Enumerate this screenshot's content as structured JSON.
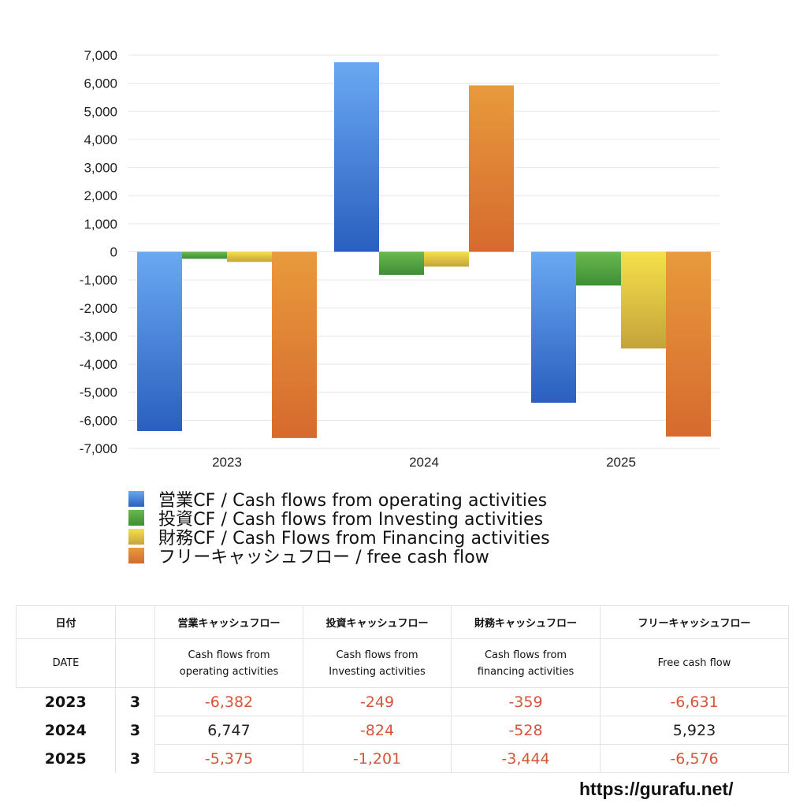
{
  "chart_data": {
    "type": "bar",
    "categories": [
      "2023",
      "2024",
      "2025"
    ],
    "series": [
      {
        "name": "営業CF / Cash flows from operating activities",
        "values": [
          -6382,
          6747,
          -5375
        ]
      },
      {
        "name": "投資CF / Cash flows from Investing activities",
        "values": [
          -249,
          -824,
          -1201
        ]
      },
      {
        "name": "財務CF / Cash Flows from Financing activities",
        "values": [
          -359,
          -528,
          -3444
        ]
      },
      {
        "name": "フリーキャッシュフロー / free cash flow",
        "values": [
          -6631,
          5923,
          -6576
        ]
      }
    ],
    "ylim": [
      -7000,
      7000
    ],
    "yticks": [
      7000,
      6000,
      5000,
      4000,
      3000,
      2000,
      1000,
      0,
      -1000,
      -2000,
      -3000,
      -4000,
      -5000,
      -6000,
      -7000
    ],
    "ytick_labels": [
      "7,000",
      "6,000",
      "5,000",
      "4,000",
      "3,000",
      "2,000",
      "1,000",
      "0",
      "-1,000",
      "-2,000",
      "-3,000",
      "-4,000",
      "-5,000",
      "-6,000",
      "-7,000"
    ],
    "grid": true,
    "legend_position": "bottom",
    "colors": [
      {
        "top": "#6aa8f2",
        "bottom": "#2a5fbf"
      },
      {
        "top": "#6ab84f",
        "bottom": "#3d8f35"
      },
      {
        "top": "#f5e04a",
        "bottom": "#c4a43a"
      },
      {
        "top": "#e89a3c",
        "bottom": "#d66a2e"
      }
    ]
  },
  "table": {
    "header1": [
      "日付",
      "",
      "営業キャッシュフロー",
      "投資キャッシュフロー",
      "財務キャッシュフロー",
      "フリーキャッシュフロー"
    ],
    "header2": [
      "DATE",
      "",
      "Cash flows from\noperating activities",
      "Cash flows from\nInvesting activities",
      "Cash flows from\nfinancing activities",
      "Free cash flow"
    ],
    "rows": [
      {
        "year": "2023",
        "month": "3",
        "values": [
          "-6,382",
          "-249",
          "-359",
          "-6,631"
        ]
      },
      {
        "year": "2024",
        "month": "3",
        "values": [
          "6,747",
          "-824",
          "-528",
          "5,923"
        ]
      },
      {
        "year": "2025",
        "month": "3",
        "values": [
          "-5,375",
          "-1,201",
          "-3,444",
          "-6,576"
        ]
      }
    ]
  },
  "footer": {
    "site": "https://gurafu.net/"
  }
}
